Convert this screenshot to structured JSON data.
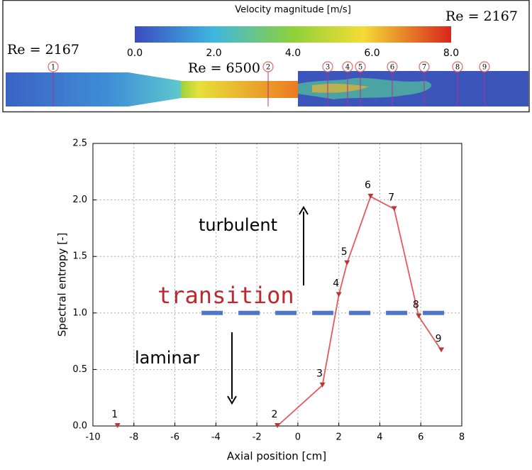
{
  "flow_figure": {
    "colorbar_title": "Velocity magnitude [m/s]",
    "colorbar_lim": [
      0,
      8
    ],
    "colorbar_ticks": [
      {
        "value": 0,
        "label": "0.0"
      },
      {
        "value": 2,
        "label": "2.0"
      },
      {
        "value": 4,
        "label": "4.0"
      },
      {
        "value": 6,
        "label": "6.0"
      },
      {
        "value": 8,
        "label": "8.0"
      }
    ],
    "reynolds_labels": [
      "Re = 2167",
      "Re = 6500",
      "Re = 2167"
    ],
    "stations": [
      "1",
      "2",
      "3",
      "4",
      "5",
      "6",
      "7",
      "8",
      "9"
    ]
  },
  "chart_data": {
    "type": "line",
    "xlabel": "Axial position [cm]",
    "ylabel": "Spectral entropy [-]",
    "xlim": [
      -10,
      8
    ],
    "ylim": [
      0,
      2.5
    ],
    "xticks": [
      -10,
      -8,
      -6,
      -4,
      -2,
      0,
      2,
      4,
      6,
      8
    ],
    "yticks": [
      {
        "value": 0,
        "label": "0.0"
      },
      {
        "value": 0.5,
        "label": "0.5"
      },
      {
        "value": 1,
        "label": "1.0"
      },
      {
        "value": 1.5,
        "label": "1.5"
      },
      {
        "value": 2,
        "label": "2.0"
      },
      {
        "value": 2.5,
        "label": "2.5"
      }
    ],
    "grid": true,
    "series": [
      {
        "color": "#e8585a",
        "x": [
          -8.8
        ],
        "values": [
          0
        ],
        "point_labels": [
          "1"
        ]
      },
      {
        "color": "#e8585a",
        "x": [
          -1.0,
          1.2,
          2.0,
          2.4,
          3.55,
          4.7,
          5.9,
          7.0
        ],
        "values": [
          0,
          0.36,
          1.16,
          1.44,
          2.03,
          1.92,
          0.97,
          0.67
        ],
        "point_labels": [
          "2",
          "3",
          "4",
          "5",
          "6",
          "7",
          "8",
          "9"
        ]
      }
    ],
    "reference_line": {
      "y": 1.0,
      "x": [
        -4.7,
        7.8
      ],
      "color": "#4f76c9"
    },
    "annotations": {
      "turbulent": "turbulent",
      "transition": "transition",
      "laminar": "laminar"
    }
  }
}
